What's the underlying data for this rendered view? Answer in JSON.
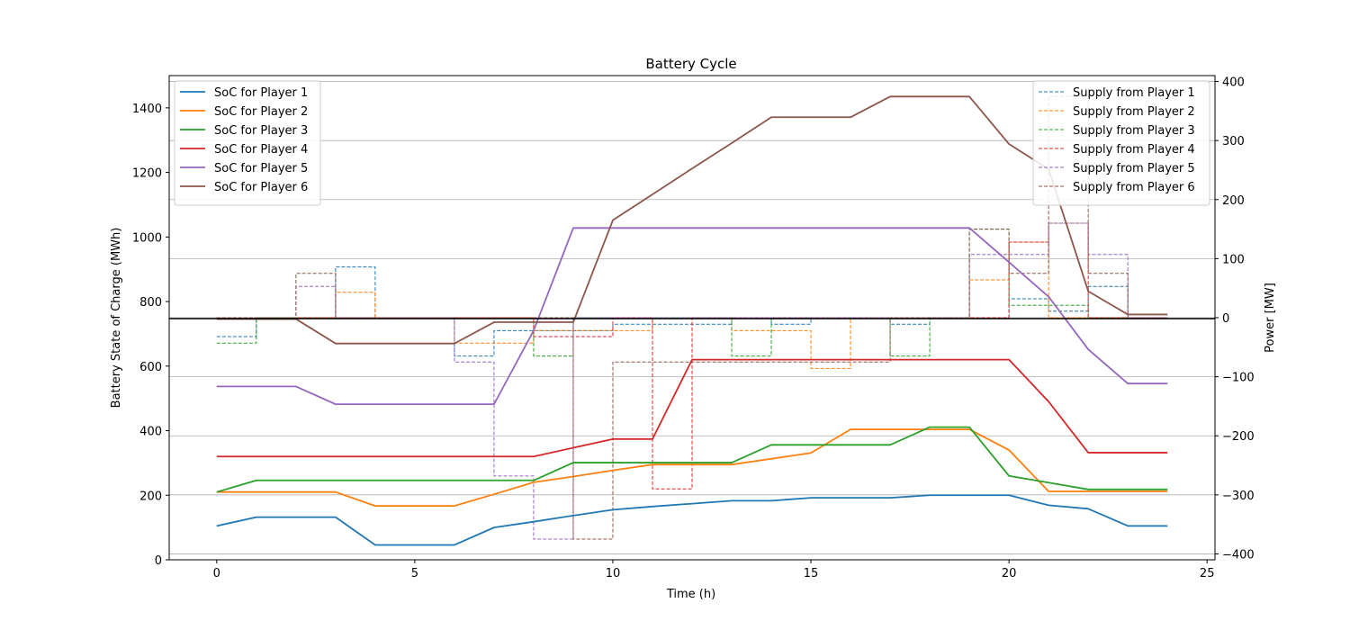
{
  "chart_data": {
    "type": "line",
    "title": "Battery Cycle",
    "xlabel": "Time (h)",
    "ylabel_left": "Battery State of Charge (MWh)",
    "ylabel_right": "Power [MW]",
    "xlim": [
      -1.2,
      25.2
    ],
    "ylim_left": [
      0,
      1500
    ],
    "ylim_right": [
      -410,
      410
    ],
    "x_ticks": [
      0,
      5,
      10,
      15,
      20,
      25
    ],
    "y_ticks_left": [
      0,
      200,
      400,
      600,
      800,
      1000,
      1200,
      1400
    ],
    "y_ticks_right": [
      -400,
      -300,
      -200,
      -100,
      0,
      100,
      200,
      300,
      400
    ],
    "grid": "horizontal lines at right-axis ticks",
    "legend_left_position": "upper-left",
    "legend_right_position": "upper-right",
    "x": [
      0,
      1,
      2,
      3,
      4,
      5,
      6,
      7,
      8,
      9,
      10,
      11,
      12,
      13,
      14,
      15,
      16,
      17,
      18,
      19,
      20,
      21,
      22,
      23,
      24
    ],
    "soc_series": [
      {
        "name": "SoC for Player 1",
        "color": "#1f77b4",
        "values": [
          105,
          132,
          132,
          132,
          46,
          46,
          46,
          100,
          118,
          137,
          155,
          165,
          174,
          183,
          183,
          192,
          192,
          192,
          200,
          200,
          200,
          169,
          158,
          105,
          105
        ]
      },
      {
        "name": "SoC for Player 2",
        "color": "#ff7f0e",
        "values": [
          210,
          210,
          210,
          210,
          167,
          167,
          167,
          203,
          240,
          258,
          277,
          295,
          295,
          295,
          313,
          331,
          404,
          404,
          404,
          404,
          340,
          212,
          212,
          212,
          212
        ]
      },
      {
        "name": "SoC for Player 3",
        "color": "#2ca02c",
        "values": [
          210,
          246,
          246,
          246,
          246,
          246,
          246,
          246,
          246,
          301,
          301,
          301,
          301,
          301,
          356,
          356,
          356,
          356,
          411,
          411,
          260,
          239,
          218,
          218,
          218
        ]
      },
      {
        "name": "SoC for Player 4",
        "color": "#d62728",
        "values": [
          320,
          320,
          320,
          320,
          320,
          320,
          320,
          320,
          320,
          347,
          374,
          374,
          620,
          620,
          620,
          620,
          620,
          620,
          620,
          620,
          620,
          490,
          332,
          332,
          332
        ]
      },
      {
        "name": "SoC for Player 5",
        "color": "#9467bd",
        "values": [
          537,
          537,
          537,
          482,
          482,
          482,
          482,
          482,
          710,
          1028,
          1028,
          1028,
          1028,
          1028,
          1028,
          1028,
          1028,
          1028,
          1028,
          1028,
          922,
          815,
          652,
          546,
          546
        ]
      },
      {
        "name": "SoC for Player 6",
        "color": "#8c564b",
        "values": [
          746,
          746,
          746,
          670,
          670,
          670,
          670,
          736,
          736,
          736,
          1052,
          1132,
          1212,
          1291,
          1371,
          1371,
          1371,
          1435,
          1435,
          1435,
          1288,
          1210,
          832,
          760,
          760
        ]
      }
    ],
    "supply_series": [
      {
        "name": "Supply from Player 1",
        "color": "#1f77b4",
        "step_values": [
          -32,
          0,
          0,
          86,
          0,
          0,
          -65,
          -22,
          -22,
          -22,
          -11,
          -11,
          -11,
          0,
          -11,
          0,
          0,
          -11,
          0,
          0,
          32,
          11,
          53,
          0
        ]
      },
      {
        "name": "Supply from Player 2",
        "color": "#ff7f0e",
        "step_values": [
          0,
          0,
          0,
          43,
          0,
          0,
          -43,
          -43,
          -22,
          -22,
          -22,
          0,
          0,
          -22,
          -22,
          -86,
          0,
          0,
          0,
          64,
          128,
          0,
          0,
          0
        ]
      },
      {
        "name": "Supply from Player 3",
        "color": "#2ca02c",
        "step_values": [
          -43,
          0,
          0,
          0,
          0,
          0,
          0,
          0,
          -65,
          0,
          0,
          0,
          0,
          -65,
          0,
          0,
          0,
          -65,
          0,
          150,
          21,
          21,
          0,
          0
        ]
      },
      {
        "name": "Supply from Player 4",
        "color": "#d62728",
        "step_values": [
          0,
          0,
          0,
          0,
          0,
          0,
          0,
          0,
          -32,
          -32,
          0,
          -290,
          0,
          0,
          0,
          0,
          0,
          0,
          0,
          0,
          128,
          160,
          0,
          0
        ]
      },
      {
        "name": "Supply from Player 5",
        "color": "#9467bd",
        "step_values": [
          0,
          0,
          53,
          0,
          0,
          0,
          -75,
          -268,
          -375,
          0,
          0,
          0,
          0,
          0,
          0,
          0,
          0,
          0,
          0,
          107,
          107,
          160,
          107,
          0
        ]
      },
      {
        "name": "Supply from Player 6",
        "color": "#8c564b",
        "step_values": [
          0,
          0,
          75,
          0,
          0,
          0,
          0,
          0,
          0,
          -375,
          -75,
          -75,
          -75,
          -75,
          -75,
          -75,
          -75,
          0,
          0,
          150,
          75,
          375,
          75,
          0
        ]
      }
    ]
  }
}
